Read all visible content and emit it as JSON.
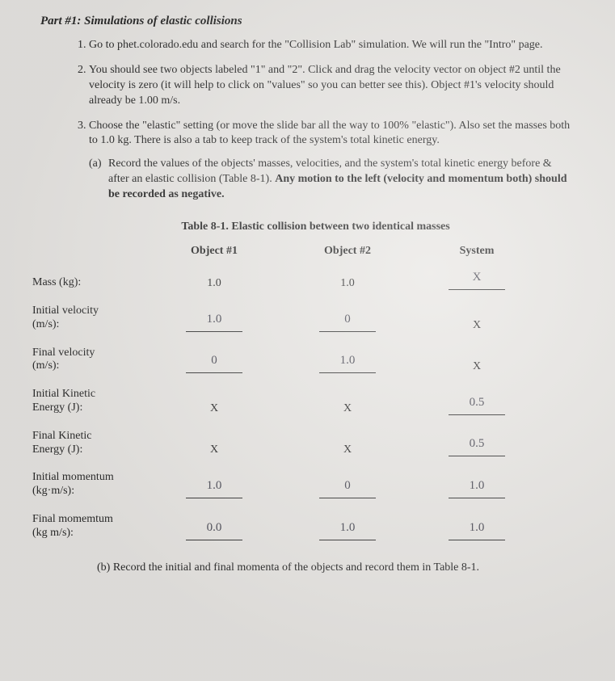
{
  "part_title": "Part #1: Simulations of elastic collisions",
  "steps": {
    "s1": "Go to phet.colorado.edu and search for the \"Collision Lab\" simulation. We will run the \"Intro\" page.",
    "s2": "You should see two objects labeled \"1\" and \"2\". Click and drag the velocity vector on object #2 until the velocity is zero (it will help to click on \"values\" so you can better see this). Object #1's velocity should already be 1.00 m/s.",
    "s3": "Choose the \"elastic\" setting (or move the slide bar all the way to 100% \"elastic\"). Also set the masses both to 1.0 kg. There is also a tab to keep track of the system's total kinetic energy.",
    "s3a_1": "Record the values of the objects' masses, velocities, and the system's total kinetic energy before & after an elastic collision (Table 8-1). ",
    "s3a_bold": "Any motion to the left (velocity and momentum both) should be recorded as negative."
  },
  "table": {
    "title": "Table 8-1. Elastic collision between two identical masses",
    "col1": "Object #1",
    "col2": "Object #2",
    "col3": "System",
    "rows": {
      "mass": {
        "label": "Mass (kg):",
        "o1": "1.0",
        "o2": "1.0",
        "sys": "X"
      },
      "iv": {
        "label": "Initial velocity (m/s):",
        "o1": "1.0",
        "o2": "0",
        "sys": "X"
      },
      "fv": {
        "label": "Final velocity (m/s):",
        "o1": "0",
        "o2": "1.0",
        "sys": "X"
      },
      "ike": {
        "label": "Initial Kinetic Energy (J):",
        "o1": "X",
        "o2": "X",
        "sys": "0.5"
      },
      "fke": {
        "label": "Final Kinetic Energy (J):",
        "o1": "X",
        "o2": "X",
        "sys": "0.5"
      },
      "ip": {
        "label": "Initial momentum (kg·m/s):",
        "o1": "1.0",
        "o2": "0",
        "sys": "1.0"
      },
      "fp": {
        "label": "Final momemtum (kg m/s):",
        "o1": "0.0",
        "o2": "1.0",
        "sys": "1.0"
      }
    }
  },
  "part_b": "(b) Record the initial and final momenta of the objects and record them in Table 8-1."
}
